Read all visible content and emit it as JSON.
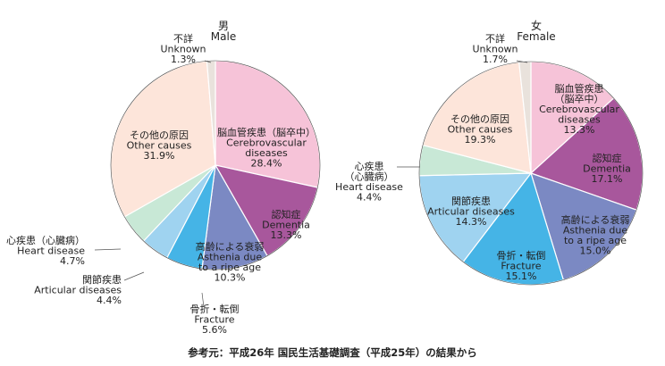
{
  "chart_data": [
    {
      "type": "pie",
      "title_ja": "男",
      "title_en": "Male",
      "unit": "%",
      "slices": [
        {
          "ja": "脳血管疾患（脳卒中）",
          "en": [
            "Cerebrovascular",
            "diseases"
          ],
          "value": 28.4,
          "value_label": "28.4%",
          "color": "#f6c3d8"
        },
        {
          "ja": "認知症",
          "en": [
            "Dementia"
          ],
          "value": 13.3,
          "value_label": "13.3%",
          "color": "#a8579c"
        },
        {
          "ja": "高齢による衰弱",
          "en": [
            "Asthenia due",
            "to a ripe age"
          ],
          "value": 10.3,
          "value_label": "10.3%",
          "color": "#7b89c3"
        },
        {
          "ja": "骨折・転倒",
          "en": [
            "Fracture"
          ],
          "value": 5.6,
          "value_label": "5.6%",
          "color": "#45b4e6"
        },
        {
          "ja": "関節疾患",
          "en": [
            "Articular diseases"
          ],
          "value": 4.4,
          "value_label": "4.4%",
          "color": "#9fd3f0"
        },
        {
          "ja": "心疾患（心臓病）",
          "en": [
            "Heart disease"
          ],
          "value": 4.7,
          "value_label": "4.7%",
          "color": "#c8e8d6"
        },
        {
          "ja": "その他の原因",
          "en": [
            "Other causes"
          ],
          "value": 31.9,
          "value_label": "31.9%",
          "color": "#fde5da"
        },
        {
          "ja": "不詳",
          "en": [
            "Unknown"
          ],
          "value": 1.3,
          "value_label": "1.3%",
          "color": "#e9e2dc"
        }
      ]
    },
    {
      "type": "pie",
      "title_ja": "女",
      "title_en": "Female",
      "unit": "%",
      "slices": [
        {
          "ja": "脳血管疾患",
          "ja2": "（脳卒中）",
          "en": [
            "Cerebrovascular",
            "diseases"
          ],
          "value": 13.3,
          "value_label": "13.3%",
          "color": "#f6c3d8"
        },
        {
          "ja": "認知症",
          "en": [
            "Dementia"
          ],
          "value": 17.1,
          "value_label": "17.1%",
          "color": "#a8579c"
        },
        {
          "ja": "高齢による衰弱",
          "en": [
            "Asthenia due",
            "to a ripe age"
          ],
          "value": 15.0,
          "value_label": "15.0%",
          "color": "#7b89c3"
        },
        {
          "ja": "骨折・転倒",
          "en": [
            "Fracture"
          ],
          "value": 15.1,
          "value_label": "15.1%",
          "color": "#45b4e6"
        },
        {
          "ja": "関節疾患",
          "en": [
            "Articular diseases"
          ],
          "value": 14.3,
          "value_label": "14.3%",
          "color": "#9fd3f0"
        },
        {
          "ja": "心疾患",
          "ja2": "（心臓病）",
          "en": [
            "Heart disease"
          ],
          "value": 4.4,
          "value_label": "4.4%",
          "color": "#c8e8d6"
        },
        {
          "ja": "その他の原因",
          "en": [
            "Other causes"
          ],
          "value": 19.3,
          "value_label": "19.3%",
          "color": "#fde5da"
        },
        {
          "ja": "不詳",
          "en": [
            "Unknown"
          ],
          "value": 1.7,
          "value_label": "1.7%",
          "color": "#e9e2dc"
        }
      ]
    }
  ],
  "source": "参考元：平成26年 国民生活基礎調査（平成25年）の結果から"
}
